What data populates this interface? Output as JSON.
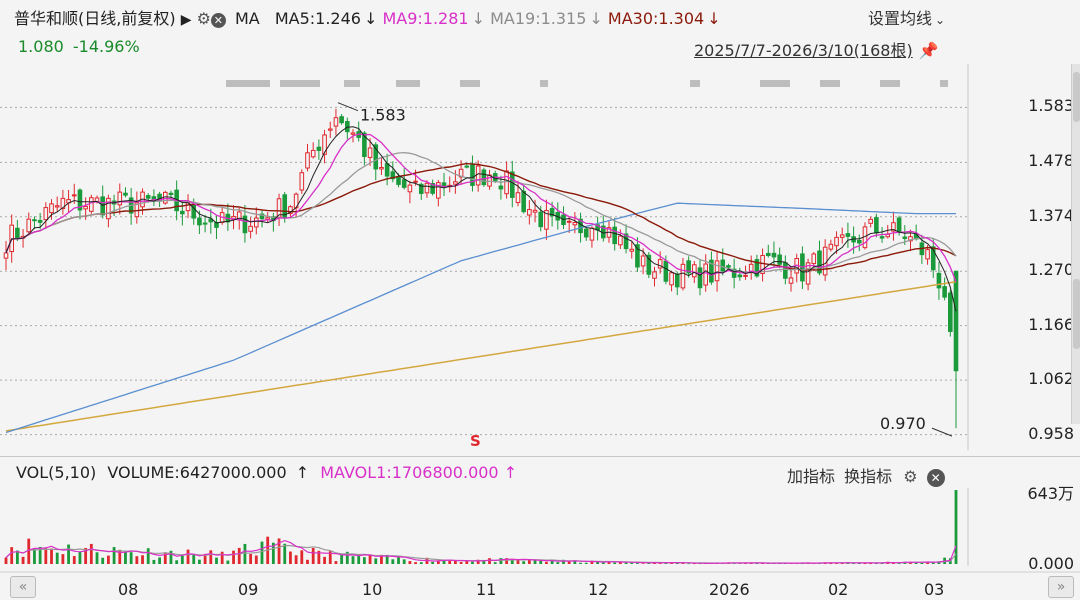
{
  "header": {
    "stock_name": "普华和顺",
    "period": "(日线,前复权)",
    "play_icon": "play-triangle-icon",
    "ma_label": "MA",
    "ma5": "MA5:1.246",
    "ma9": "MA9:1.281",
    "ma19": "MA19:1.315",
    "ma30": "MA30:1.304",
    "settings_link": "设置均线",
    "price": "1.080",
    "change_pct": "-14.96%",
    "range": "2025/7/7-2026/3/10(168根)"
  },
  "volume_header": {
    "vol_label": "VOL(5,10)",
    "volume": "VOLUME:6427000.000",
    "mavol1": "MAVOL1:1706800.000",
    "add_indicator": "加指标",
    "switch_indicator": "换指标"
  },
  "colors": {
    "up": "#e0282e",
    "down": "#1a9a3a",
    "ma5": "#222222",
    "ma9": "#d830c8",
    "ma19": "#9a9a9a",
    "ma30": "#8b1a0a",
    "ma_long": "#5a8fd0",
    "ma_longest": "#d4a840"
  },
  "annotations": {
    "high": "1.583",
    "low": "0.970",
    "signal": "S"
  },
  "chart_data": {
    "type": "candlestick",
    "y_ticks": [
      "1.583",
      "1.478",
      "1.374",
      "1.270",
      "1.166",
      "1.062",
      "0.958"
    ],
    "ylim": [
      0.94,
      1.62
    ],
    "x_ticks": [
      "08",
      "09",
      "10",
      "11",
      "12",
      "2026",
      "02",
      "03"
    ],
    "volume_ticks": [
      "643万",
      "0.000"
    ],
    "volume_max": 643,
    "close_anchors": [
      [
        0,
        1.33
      ],
      [
        10,
        1.4
      ],
      [
        20,
        1.4
      ],
      [
        28,
        1.4
      ],
      [
        38,
        1.36
      ],
      [
        45,
        1.37
      ],
      [
        50,
        1.4
      ],
      [
        54,
        1.5
      ],
      [
        58,
        1.57
      ],
      [
        62,
        1.52
      ],
      [
        66,
        1.45
      ],
      [
        72,
        1.42
      ],
      [
        80,
        1.45
      ],
      [
        86,
        1.46
      ],
      [
        92,
        1.39
      ],
      [
        98,
        1.34
      ],
      [
        104,
        1.37
      ],
      [
        112,
        1.28
      ],
      [
        120,
        1.26
      ],
      [
        128,
        1.27
      ],
      [
        134,
        1.29
      ],
      [
        140,
        1.27
      ],
      [
        146,
        1.31
      ],
      [
        152,
        1.35
      ],
      [
        158,
        1.34
      ],
      [
        162,
        1.3
      ],
      [
        165,
        1.23
      ],
      [
        167,
        1.08
      ]
    ],
    "ma_long_anchors": [
      [
        0,
        0.962
      ],
      [
        40,
        1.1
      ],
      [
        80,
        1.29
      ],
      [
        100,
        1.35
      ],
      [
        118,
        1.4
      ],
      [
        140,
        1.39
      ],
      [
        160,
        1.38
      ]
    ],
    "ma_longest_anchors": [
      [
        0,
        0.965
      ],
      [
        167,
        1.25
      ]
    ],
    "volume_anchors": [
      [
        0,
        160
      ],
      [
        20,
        110
      ],
      [
        38,
        70
      ],
      [
        46,
        150
      ],
      [
        55,
        80
      ],
      [
        70,
        40
      ],
      [
        90,
        30
      ],
      [
        110,
        12
      ],
      [
        130,
        8
      ],
      [
        145,
        10
      ],
      [
        160,
        14
      ],
      [
        166,
        40
      ],
      [
        167,
        643
      ]
    ]
  }
}
